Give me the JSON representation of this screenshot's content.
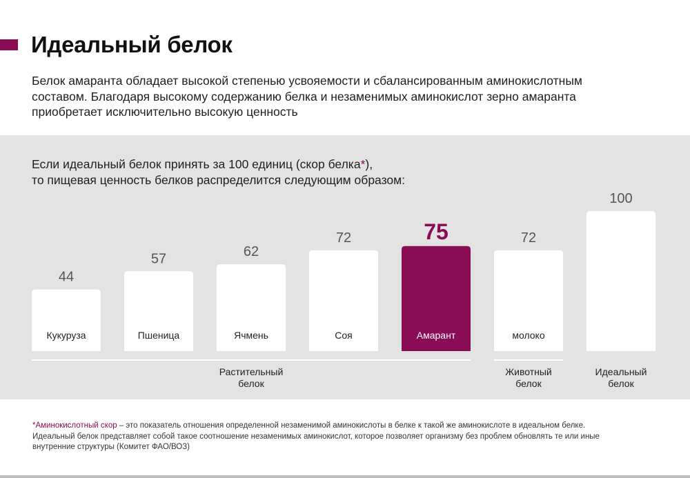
{
  "title": "Идеальный белок",
  "intro": "Белок амаранта обладает высокой степенью усвояемости и сбалансированным аминокислотным составом. Благодаря высокому содержанию белка и незаменимых аминокислот зерно амаранта приобретает исключительно высокую ценность",
  "chart_heading": {
    "before": "Если идеальный белок принять за 100 единиц (скор белка",
    "star": "*",
    "after": "),",
    "line2": "то пищевая ценность белков распределится следующим образом:"
  },
  "colors": {
    "accent": "#8a0c54",
    "panel_bg": "#e3e3e3",
    "bar_fill": "#ffffff",
    "value_text": "#555555",
    "group_line": "#ffffff"
  },
  "chart_data": {
    "type": "bar",
    "title": "Если идеальный белок принять за 100 единиц (скор белка*), то пищевая ценность белков распределится следующим образом:",
    "categories": [
      "Кукуруза",
      "Пшеница",
      "Ячмень",
      "Соя",
      "Амарант",
      "молоко",
      "Идеальный белок"
    ],
    "values": [
      44,
      57,
      62,
      72,
      75,
      72,
      100
    ],
    "bar_labels": [
      "Кукуруза",
      "Пшеница",
      "Ячмень",
      "Соя",
      "Амарант",
      "молоко",
      ""
    ],
    "highlight_index": 4,
    "ylim": [
      0,
      100
    ],
    "xlabel": "",
    "ylabel": "",
    "grid": false,
    "groups": [
      {
        "label_lines": [
          "Растительный",
          "белок"
        ],
        "first": 0,
        "last": 4
      },
      {
        "label_lines": [
          "Животный",
          "белок"
        ],
        "first": 5,
        "last": 5
      },
      {
        "label_lines": [
          "Идеальный",
          "белок"
        ],
        "first": 6,
        "last": 6
      }
    ]
  },
  "footnote": {
    "star_term": "*Аминокислотный скор",
    "text": " – это показатель отношения определенной незаменимой аминокислоты в белке к такой же аминокислоте в идеальном белке. Идеальный белок представляет собой такое соотношение незаменимых аминокислот, которое позволяет организму без проблем обновлять те или иные внутренние структуры (Комитет ФАО/ВОЗ)"
  }
}
